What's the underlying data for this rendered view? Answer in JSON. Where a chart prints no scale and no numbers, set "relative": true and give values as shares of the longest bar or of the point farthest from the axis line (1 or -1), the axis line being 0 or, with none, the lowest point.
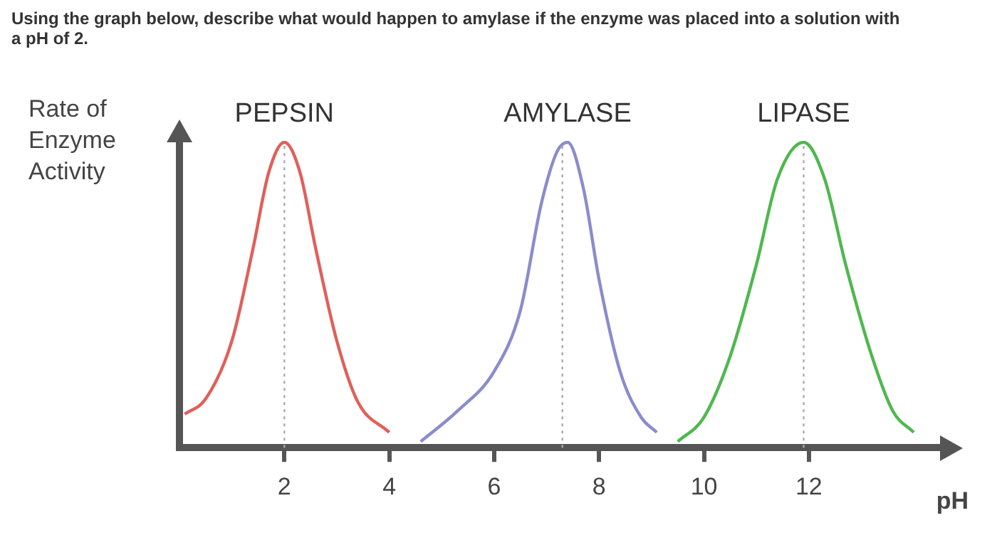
{
  "chart_data": {
    "type": "line",
    "title": "Using the graph below, describe what would happen to amylase if the enzyme was placed into a solution with a pH of 2.",
    "ylabel": "Rate of Enzyme Activity",
    "xlabel": "pH",
    "relative": true,
    "xlim": [
      0,
      14.5
    ],
    "xticks": [
      2,
      4,
      6,
      8,
      10,
      12
    ],
    "grid": false,
    "legend": false,
    "marker": "none",
    "line_style": "solid",
    "series": [
      {
        "name": "PEPSIN",
        "color": "#e0605a",
        "x": [
          0.1,
          0.5,
          1.0,
          1.4,
          1.7,
          2.0,
          2.3,
          2.6,
          3.0,
          3.4,
          4.0
        ],
        "values": [
          0.11,
          0.16,
          0.35,
          0.65,
          0.9,
          1.0,
          0.9,
          0.65,
          0.35,
          0.15,
          0.05
        ]
      },
      {
        "name": "AMYLASE",
        "color": "#8a8ccc",
        "x": [
          4.6,
          5.3,
          6.0,
          6.5,
          6.9,
          7.2,
          7.4,
          7.7,
          8.0,
          8.4,
          8.8,
          9.1
        ],
        "values": [
          0.02,
          0.12,
          0.25,
          0.45,
          0.8,
          0.97,
          1.0,
          0.85,
          0.55,
          0.25,
          0.1,
          0.05
        ]
      },
      {
        "name": "LIPASE",
        "color": "#4fb84f",
        "x": [
          9.5,
          10.0,
          10.5,
          11.0,
          11.4,
          11.9,
          12.3,
          12.7,
          13.2,
          13.6,
          14.0
        ],
        "values": [
          0.02,
          0.1,
          0.3,
          0.6,
          0.88,
          1.0,
          0.88,
          0.6,
          0.3,
          0.12,
          0.05
        ]
      }
    ],
    "ref_lines": [
      {
        "axis": "x",
        "value": 2,
        "color": "#aaaaaa",
        "line_style": "dotted"
      },
      {
        "axis": "x",
        "value": 7.3,
        "color": "#aaaaaa",
        "line_style": "dotted"
      },
      {
        "axis": "x",
        "value": 11.9,
        "color": "#aaaaaa",
        "line_style": "dotted"
      }
    ]
  }
}
